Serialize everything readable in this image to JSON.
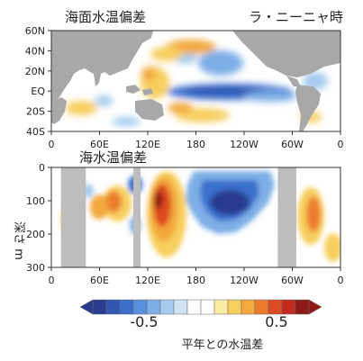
{
  "chart_data": [
    {
      "type": "heatmap",
      "title": "海面水温偏差",
      "annotation": "ラ・ニーニャ時",
      "x_ticks": [
        "0",
        "60E",
        "120E",
        "180",
        "120W",
        "60W",
        "0"
      ],
      "y_ticks": [
        "60N",
        "40N",
        "20N",
        "EQ",
        "20S",
        "40S"
      ],
      "xlim": [
        0,
        360
      ],
      "ylim": [
        -40,
        60
      ],
      "features": [
        {
          "name": "equatorial cold tongue",
          "lon": [
            175,
            280
          ],
          "lat": [
            -8,
            8
          ],
          "anomaly": -0.7
        },
        {
          "name": "western Pacific warm pool",
          "lon": [
            110,
            160
          ],
          "lat": [
            -15,
            15
          ],
          "anomaly": 0.4
        },
        {
          "name": "north Pacific warm",
          "lon": [
            150,
            220
          ],
          "lat": [
            20,
            45
          ],
          "anomaly": 0.5
        },
        {
          "name": "north Pacific cold arc",
          "lon": [
            200,
            240
          ],
          "lat": [
            10,
            40
          ],
          "anomaly": -0.4
        },
        {
          "name": "south Pacific warm",
          "lon": [
            170,
            230
          ],
          "lat": [
            -35,
            -15
          ],
          "anomaly": 0.3
        }
      ]
    },
    {
      "type": "heatmap",
      "title": "海水温偏差",
      "ylabel": "深さ m",
      "x_ticks": [
        "0",
        "60E",
        "120E",
        "180",
        "120W",
        "60W",
        "0"
      ],
      "y_ticks": [
        "0",
        "100",
        "200",
        "300"
      ],
      "xlim": [
        0,
        360
      ],
      "ylim": [
        300,
        0
      ],
      "features": [
        {
          "name": "west Pacific subsurface warm",
          "lon": [
            115,
            165
          ],
          "depth": [
            40,
            200
          ],
          "anomaly": 0.8
        },
        {
          "name": "Indian Ocean warm",
          "lon": [
            70,
            100
          ],
          "depth": [
            60,
            160
          ],
          "anomaly": 0.5
        },
        {
          "name": "central-east Pacific cold",
          "lon": [
            175,
            270
          ],
          "depth": [
            0,
            160
          ],
          "anomaly": -0.8
        },
        {
          "name": "Atlantic warm",
          "lon": [
            305,
            345
          ],
          "depth": [
            60,
            200
          ],
          "anomaly": 0.3
        }
      ],
      "land_masks": [
        [
          12,
          43
        ],
        [
          102,
          111
        ],
        [
          282,
          305
        ]
      ]
    }
  ],
  "colorbar": {
    "min": -0.9,
    "max": 0.9,
    "tick_labels": [
      "-0.5",
      "0.5"
    ],
    "caption": "平年との水温差",
    "colors": [
      "#2a3b8f",
      "#2f57b3",
      "#3b6fcc",
      "#5a8fdb",
      "#7daee6",
      "#a5cbef",
      "#cfe3f5",
      "#ffffff",
      "#ffffff",
      "#fbeca2",
      "#f7cf5e",
      "#f3a93c",
      "#ec7b2e",
      "#dd4b24",
      "#c02a1f",
      "#8e1a16"
    ]
  }
}
